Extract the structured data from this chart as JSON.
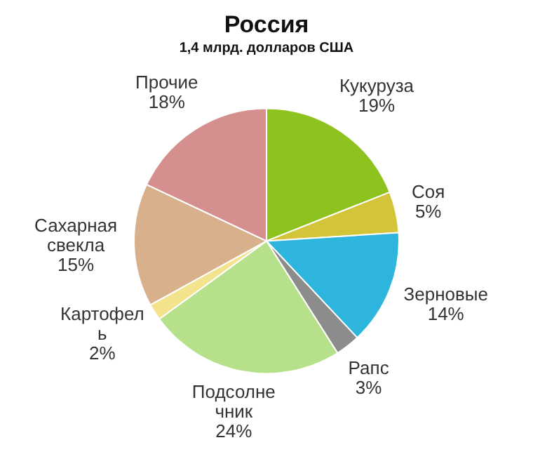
{
  "chart_data": {
    "type": "pie",
    "title": "Россия",
    "subtitle": "1,4 млрд. долларов США",
    "categories": [
      "Кукуруза",
      "Соя",
      "Зерновые",
      "Рапс",
      "Подсолнечник",
      "Картофель",
      "Сахарная свекла",
      "Прочие"
    ],
    "values": [
      19,
      5,
      14,
      3,
      24,
      2,
      15,
      18
    ],
    "colors": [
      "#8dc21f",
      "#d4c43a",
      "#2eb5de",
      "#8c8c8c",
      "#b7e08a",
      "#f3e38c",
      "#d9b08c",
      "#d68f8f"
    ],
    "value_labels": [
      "19%",
      "5%",
      "14%",
      "3%",
      "24%",
      "2%",
      "15%",
      "18%"
    ],
    "legend": false
  }
}
